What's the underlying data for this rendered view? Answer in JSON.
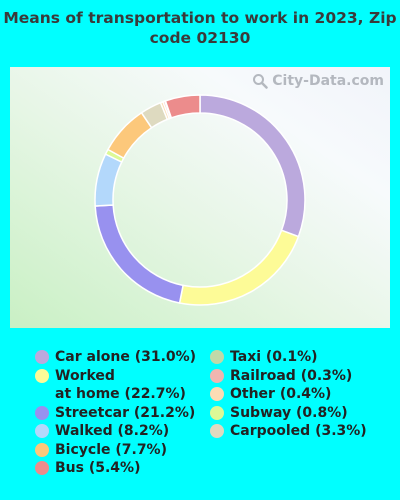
{
  "chart_data": {
    "type": "pie",
    "variant": "donut",
    "title": "Means of transportation to work in 2023, Zip code 02130",
    "slices": [
      {
        "label": "Car alone (31.0%)",
        "value": 31.0,
        "color": "#bba9dd"
      },
      {
        "label": "Worked\nat home (22.7%)",
        "value": 22.7,
        "color": "#fdfb97"
      },
      {
        "label": "Streetcar (21.2%)",
        "value": 21.2,
        "color": "#9891ef"
      },
      {
        "label": "Walked (8.2%)",
        "value": 8.2,
        "color": "#b3d8fb"
      },
      {
        "label": "Bicycle (7.7%)",
        "value": 7.7,
        "color": "#fcc87b"
      },
      {
        "label": "Bus (5.4%)",
        "value": 5.4,
        "color": "#ec8c8c"
      },
      {
        "label": "Taxi (0.1%)",
        "value": 0.1,
        "color": "#c1d9a8"
      },
      {
        "label": "Railroad (0.3%)",
        "value": 0.3,
        "color": "#f0b6b0"
      },
      {
        "label": "Other (0.4%)",
        "value": 0.4,
        "color": "#fcdcb4"
      },
      {
        "label": "Subway (0.8%)",
        "value": 0.8,
        "color": "#dcf996"
      },
      {
        "label": "Carpooled (3.3%)",
        "value": 3.3,
        "color": "#dedac0"
      }
    ],
    "draw_order": [
      0,
      1,
      2,
      3,
      9,
      4,
      10,
      8,
      7,
      6,
      5
    ],
    "legend_columns": [
      [
        0,
        1,
        2,
        3,
        4,
        5
      ],
      [
        6,
        7,
        8,
        9,
        10
      ]
    ]
  },
  "watermark": "City-Data.com",
  "watermark_icon": "magnifier-icon",
  "colors": {
    "background": "#00ffff"
  }
}
